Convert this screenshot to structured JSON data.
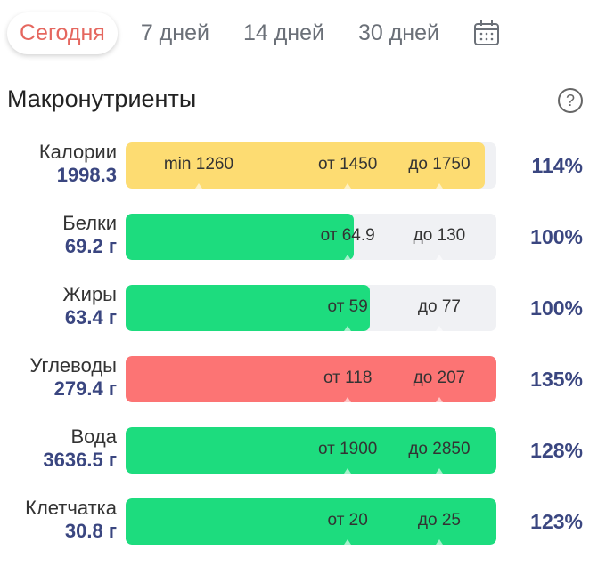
{
  "tabs": [
    {
      "label": "Сегодня",
      "active": true
    },
    {
      "label": "7 дней"
    },
    {
      "label": "14 дней"
    },
    {
      "label": "30 дней"
    }
  ],
  "section_title": "Макронутриенты",
  "help_label": "?",
  "colors": {
    "yellow": "#fddc72",
    "green": "#1ddc7e",
    "red": "#fc7474",
    "track": "#f0f1f4"
  },
  "rows": [
    {
      "name": "Калории",
      "value": "1998.3",
      "percent": "114%",
      "fill": 0.969,
      "color": "#fddc72",
      "markers": [
        {
          "label": "min 1260",
          "pos": 0.197
        },
        {
          "label": "от 1450",
          "pos": 0.599
        },
        {
          "label": "до 1750",
          "pos": 0.846
        }
      ]
    },
    {
      "name": "Белки",
      "value": "69.2 г",
      "percent": "100%",
      "fill": 0.615,
      "color": "#1ddc7e",
      "markers": [
        {
          "label": "от 64.9",
          "pos": 0.599
        },
        {
          "label": "до 130",
          "pos": 0.846
        }
      ]
    },
    {
      "name": "Жиры",
      "value": "63.4 г",
      "percent": "100%",
      "fill": 0.659,
      "color": "#1ddc7e",
      "markers": [
        {
          "label": "от 59",
          "pos": 0.599
        },
        {
          "label": "до 77",
          "pos": 0.846
        }
      ]
    },
    {
      "name": "Углеводы",
      "value": "279.4 г",
      "percent": "135%",
      "fill": 1,
      "color": "#fc7474",
      "markers": [
        {
          "label": "от 118",
          "pos": 0.599
        },
        {
          "label": "до 207",
          "pos": 0.846
        }
      ]
    },
    {
      "name": "Вода",
      "value": "3636.5 г",
      "percent": "128%",
      "fill": 1,
      "color": "#1ddc7e",
      "markers": [
        {
          "label": "от 1900",
          "pos": 0.599
        },
        {
          "label": "до 2850",
          "pos": 0.846
        }
      ]
    },
    {
      "name": "Клетчатка",
      "value": "30.8 г",
      "percent": "123%",
      "fill": 1,
      "color": "#1ddc7e",
      "markers": [
        {
          "label": "от 20",
          "pos": 0.599
        },
        {
          "label": "до 25",
          "pos": 0.846
        }
      ]
    }
  ]
}
